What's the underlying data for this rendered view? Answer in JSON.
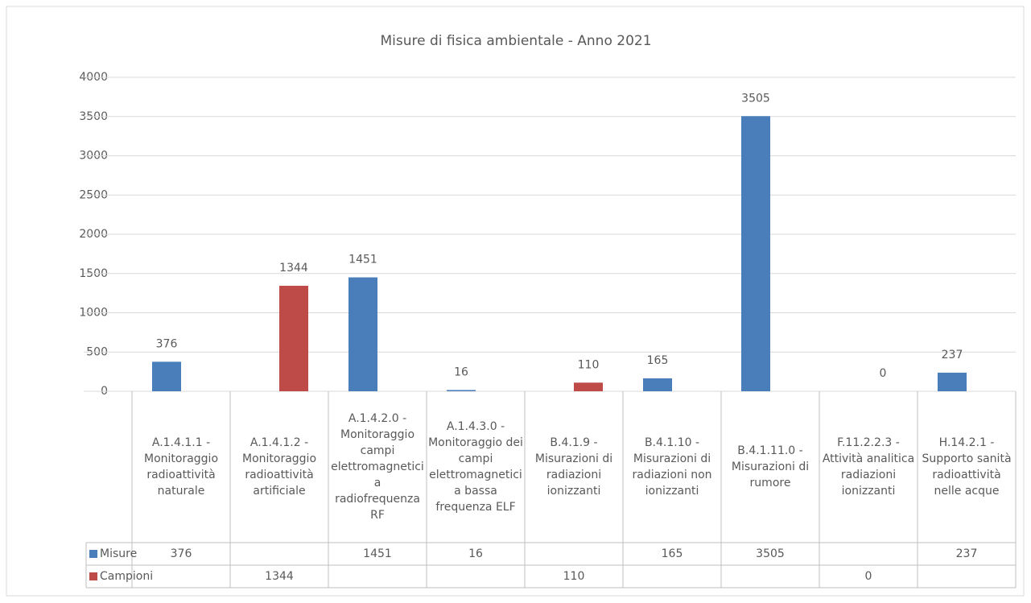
{
  "chart_data": {
    "type": "bar",
    "title": "Misure di fisica ambientale - Anno 2021",
    "categories": [
      "A.1.4.1.1 - Monitoraggio radioattività naturale",
      "A.1.4.1.2 - Monitoraggio radioattività artificiale",
      "A.1.4.2.0 - Monitoraggio campi elettromagnetici a radiofrequenza RF",
      "A.1.4.3.0 - Monitoraggio dei campi elettromagnetici a bassa frequenza ELF",
      "B.4.1.9 - Misurazioni di radiazioni ionizzanti",
      "B.4.1.10 - Misurazioni di radiazioni non ionizzanti",
      "B.4.1.11.0 - Misurazioni di rumore",
      "F.11.2.2.3 - Attività analitica radiazioni ionizzanti",
      "H.14.2.1 - Supporto sanità radioattività nelle acque"
    ],
    "series": [
      {
        "name": "Misure",
        "color": "#4a7ebb",
        "values": [
          376,
          null,
          1451,
          16,
          null,
          165,
          3505,
          null,
          237
        ]
      },
      {
        "name": "Campioni",
        "color": "#be4b48",
        "values": [
          null,
          1344,
          null,
          null,
          110,
          null,
          null,
          0,
          null
        ]
      }
    ],
    "ylim": [
      0,
      4000
    ],
    "yticks": [
      0,
      500,
      1000,
      1500,
      2000,
      2500,
      3000,
      3500,
      4000
    ],
    "grid": true,
    "legend": "table"
  }
}
